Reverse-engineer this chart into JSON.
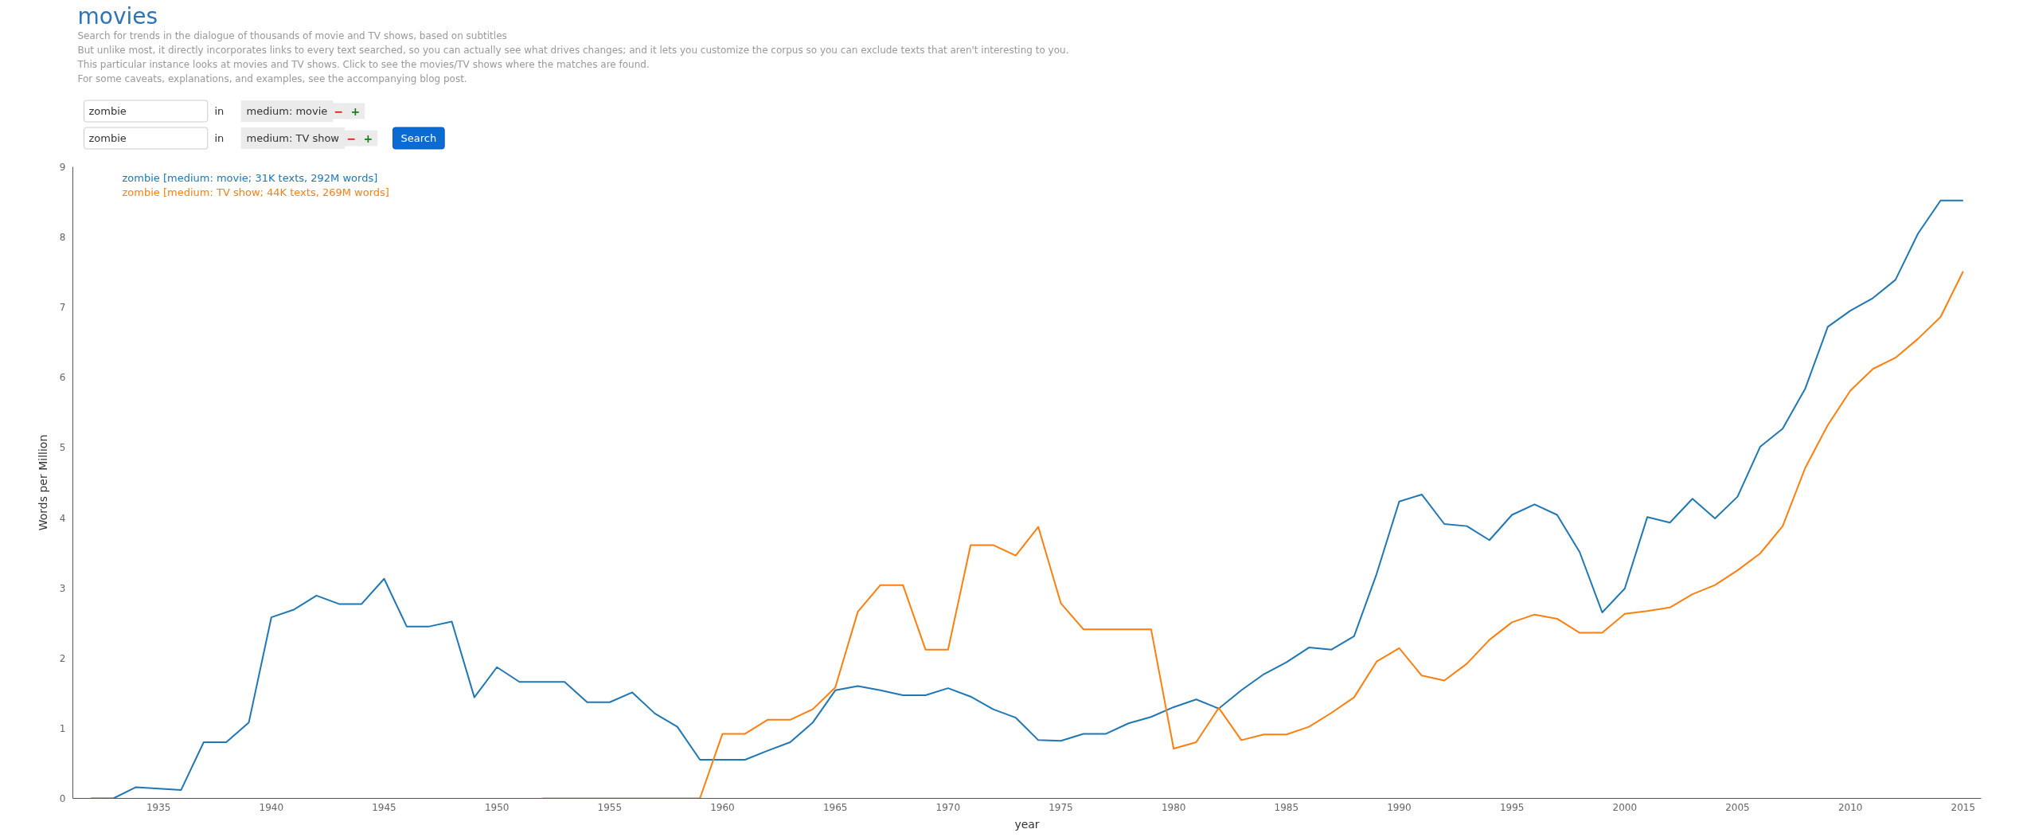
{
  "chart_data": {
    "type": "line",
    "title": "movies",
    "subtitle": "Search for trends in the dialogue of thousands of movie and TV shows, based on subtitles",
    "annotations": [
      "But unlike most, it directly incorporates links to every text searched, so you can actually see what drives changes; and it lets you customize the corpus so you can exclude texts that aren't interesting to you.",
      "This particular instance looks at movies and TV shows. Click to see the movies/TV shows where the matches are found.",
      "For some caveats, explanations, and examples, see the accompanying blog post.",
      "zombie",
      "in",
      "medium: movie",
      "−",
      "+",
      "zombie",
      "in",
      "medium: TV show",
      "−",
      "+",
      "Search"
    ],
    "xlabel": "year",
    "ylabel": "Words per Million",
    "legend": "top left",
    "x": [
      1932,
      1933,
      1934,
      1935,
      1936,
      1937,
      1938,
      1939,
      1940,
      1941,
      1942,
      1943,
      1944,
      1945,
      1946,
      1947,
      1948,
      1949,
      1950,
      1951,
      1952,
      1953,
      1954,
      1955,
      1956,
      1957,
      1958,
      1959,
      1960,
      1961,
      1962,
      1963,
      1964,
      1965,
      1966,
      1967,
      1968,
      1969,
      1970,
      1971,
      1972,
      1973,
      1974,
      1975,
      1976,
      1977,
      1978,
      1979,
      1980,
      1981,
      1982,
      1983,
      1984,
      1985,
      1986,
      1987,
      1988,
      1989,
      1990,
      1991,
      1992,
      1993,
      1994,
      1995,
      1996,
      1997,
      1998,
      1999,
      2000,
      2001,
      2002,
      2003,
      2004,
      2005,
      2006,
      2007,
      2008,
      2009,
      2010,
      2011,
      2012,
      2013,
      2014,
      2015
    ],
    "xlim": [
      1931.2,
      2015.8
    ],
    "xticks": [
      1935,
      1940,
      1945,
      1950,
      1955,
      1960,
      1965,
      1970,
      1975,
      1980,
      1985,
      1990,
      1995,
      2000,
      2005,
      2010,
      2015
    ],
    "ylim": [
      0,
      9
    ],
    "yticks": [
      0,
      1,
      2,
      3,
      4,
      5,
      6,
      7,
      8,
      9
    ],
    "series": [
      {
        "name": "zombie [medium: movie; 31K texts, 292M words]",
        "color": "#1f77b4",
        "values": [
          0,
          0,
          0.16,
          0.14,
          0.12,
          0.8,
          0.8,
          1.08,
          2.58,
          2.69,
          2.89,
          2.77,
          2.77,
          3.13,
          2.45,
          2.45,
          2.52,
          1.44,
          1.87,
          1.66,
          1.66,
          1.66,
          1.37,
          1.37,
          1.51,
          1.21,
          1.02,
          0.55,
          0.55,
          0.55,
          0.68,
          0.8,
          1.08,
          1.54,
          1.6,
          1.54,
          1.47,
          1.47,
          1.57,
          1.45,
          1.27,
          1.15,
          0.83,
          0.82,
          0.92,
          0.92,
          1.07,
          1.16,
          1.3,
          1.41,
          1.28,
          1.54,
          1.77,
          1.94,
          2.15,
          2.12,
          2.31,
          3.2,
          4.23,
          4.33,
          3.91,
          3.88,
          3.68,
          4.04,
          4.19,
          4.04,
          3.51,
          2.65,
          2.99,
          4.01,
          3.93,
          4.27,
          3.99,
          4.3,
          5.01,
          5.27,
          5.84,
          6.72,
          6.95,
          7.13,
          7.39,
          8.05,
          8.52,
          8.52
        ]
      },
      {
        "name": "zombie [medium: TV show; 44K texts, 269M words]",
        "color": "#ff7f0e",
        "values": [
          null,
          null,
          null,
          null,
          null,
          null,
          null,
          null,
          null,
          null,
          null,
          null,
          null,
          null,
          null,
          null,
          null,
          null,
          null,
          null,
          0,
          0,
          0,
          0,
          0,
          0,
          0,
          0,
          0.92,
          0.92,
          1.12,
          1.12,
          1.27,
          1.58,
          2.66,
          3.04,
          3.04,
          2.12,
          2.12,
          3.61,
          3.61,
          3.46,
          3.87,
          2.78,
          2.41,
          2.41,
          2.41,
          2.41,
          0.71,
          0.8,
          1.29,
          0.83,
          0.91,
          0.91,
          1.02,
          1.22,
          1.44,
          1.95,
          2.14,
          1.75,
          1.68,
          1.92,
          2.26,
          2.51,
          2.62,
          2.56,
          2.36,
          2.36,
          2.63,
          2.67,
          2.72,
          2.91,
          3.04,
          3.25,
          3.49,
          3.88,
          4.71,
          5.32,
          5.81,
          6.12,
          6.28,
          6.55,
          6.86,
          7.51
        ]
      }
    ]
  }
}
